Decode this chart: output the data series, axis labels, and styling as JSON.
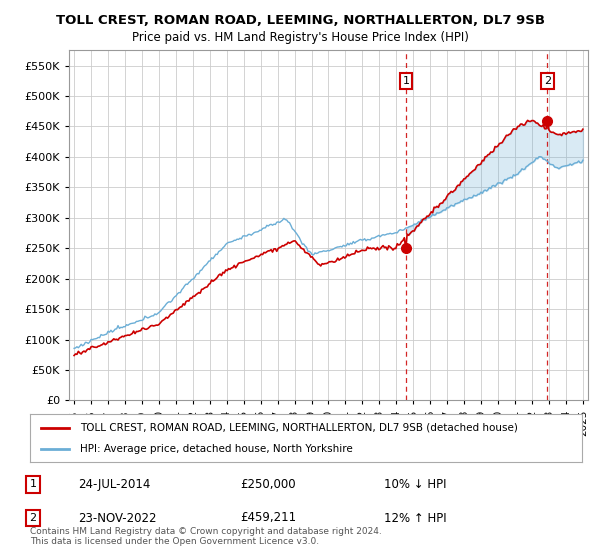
{
  "title": "TOLL CREST, ROMAN ROAD, LEEMING, NORTHALLERTON, DL7 9SB",
  "subtitle": "Price paid vs. HM Land Registry's House Price Index (HPI)",
  "ylim": [
    0,
    575000
  ],
  "yticks": [
    0,
    50000,
    100000,
    150000,
    200000,
    250000,
    300000,
    350000,
    400000,
    450000,
    500000,
    550000
  ],
  "xlim_start": 1994.7,
  "xlim_end": 2025.3,
  "hpi_color": "#6baed6",
  "property_color": "#cc0000",
  "vline_color": "#cc0000",
  "fill_color": "#ddeeff",
  "grid_color": "#cccccc",
  "background_color": "#ffffff",
  "plot_bg_color": "#ffffff",
  "sale1_x": 2014.56,
  "sale1_y": 250000,
  "sale2_x": 2022.9,
  "sale2_y": 459211,
  "legend_line1": "TOLL CREST, ROMAN ROAD, LEEMING, NORTHALLERTON, DL7 9SB (detached house)",
  "legend_line2": "HPI: Average price, detached house, North Yorkshire",
  "annotation1_date": "24-JUL-2014",
  "annotation1_price": "£250,000",
  "annotation1_hpi": "10% ↓ HPI",
  "annotation2_date": "23-NOV-2022",
  "annotation2_price": "£459,211",
  "annotation2_hpi": "12% ↑ HPI",
  "footer": "Contains HM Land Registry data © Crown copyright and database right 2024.\nThis data is licensed under the Open Government Licence v3.0."
}
